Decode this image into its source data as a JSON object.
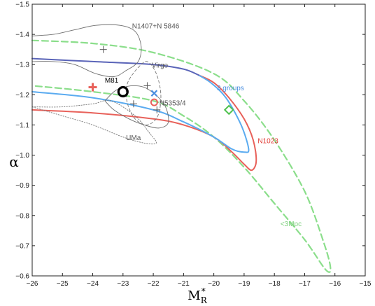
{
  "chart_data": {
    "type": "line",
    "title": "",
    "xlabel_main": "M",
    "xlabel_sub": "R",
    "xlabel_sup": "*",
    "ylabel": "α",
    "xlim": [
      -26,
      -15
    ],
    "ylim": [
      -1.5,
      -0.6
    ],
    "y_inverted": true,
    "grid": false,
    "xticks": [
      -26,
      -25,
      -24,
      -23,
      -22,
      -21,
      -20,
      -19,
      -18,
      -17,
      -16,
      -15
    ],
    "yticks": [
      -1.5,
      -1.4,
      -1.3,
      -1.2,
      -1.1,
      -1.0,
      -0.9,
      -0.8,
      -0.7,
      -0.6
    ],
    "xtick_labels": [
      "−26",
      "−25",
      "−24",
      "−23",
      "−22",
      "−21",
      "−20",
      "−19",
      "−18",
      "−17",
      "−16",
      "−15"
    ],
    "ytick_labels": [
      "−1.5",
      "−1.4",
      "−1.3",
      "−1.2",
      "−1.1",
      "−1.0",
      "−0.9",
      "−0.8",
      "−0.7",
      "−0.6"
    ],
    "series": [
      {
        "name": "<3Mpc",
        "color": "#8bde8b",
        "style": "dashed",
        "points": [
          [
            -26,
            -1.38
          ],
          [
            -24,
            -1.37
          ],
          [
            -22,
            -1.34
          ],
          [
            -20,
            -1.27
          ],
          [
            -19,
            -1.18
          ],
          [
            -18,
            -1.05
          ],
          [
            -17,
            -0.88
          ],
          [
            -16.4,
            -0.72
          ],
          [
            -16.15,
            -0.63
          ],
          [
            -16.3,
            -0.62
          ],
          [
            -17,
            -0.72
          ],
          [
            -18,
            -0.84
          ],
          [
            -19,
            -0.96
          ],
          [
            -20,
            -1.06
          ],
          [
            -21,
            -1.13
          ],
          [
            -22,
            -1.18
          ],
          [
            -24,
            -1.21
          ],
          [
            -26,
            -1.23
          ]
        ]
      },
      {
        "name": "N1023",
        "color": "#e8615a",
        "style": "solid",
        "points": [
          [
            -26,
            -1.15
          ],
          [
            -24,
            -1.14
          ],
          [
            -22,
            -1.12
          ],
          [
            -21,
            -1.1
          ],
          [
            -20,
            -1.06
          ],
          [
            -19.4,
            -1.01
          ],
          [
            -19,
            -0.97
          ],
          [
            -18.75,
            -0.95
          ],
          [
            -18.6,
            -0.98
          ],
          [
            -18.7,
            -1.05
          ],
          [
            -19,
            -1.12
          ],
          [
            -19.5,
            -1.19
          ],
          [
            -20,
            -1.24
          ],
          [
            -20.5,
            -1.265
          ]
        ]
      },
      {
        "name": "3 groups",
        "color": "#5aabf0",
        "style": "solid",
        "points": [
          [
            -26,
            -1.21
          ],
          [
            -24,
            -1.19
          ],
          [
            -22,
            -1.15
          ],
          [
            -21,
            -1.11
          ],
          [
            -20,
            -1.06
          ],
          [
            -19.4,
            -1.02
          ],
          [
            -19,
            -1.01
          ],
          [
            -18.85,
            -1.02
          ],
          [
            -19.1,
            -1.1
          ],
          [
            -19.6,
            -1.19
          ],
          [
            -20.1,
            -1.24
          ],
          [
            -20.5,
            -1.265
          ]
        ]
      },
      {
        "name": "",
        "color": "#5a64b8",
        "style": "solid",
        "points": [
          [
            -26,
            -1.32
          ],
          [
            -24,
            -1.31
          ],
          [
            -22,
            -1.3
          ],
          [
            -21,
            -1.285
          ],
          [
            -20.5,
            -1.265
          ]
        ]
      },
      {
        "name": "N1407+N 5846",
        "color": "#707070",
        "style": "solid-thin",
        "points": [
          [
            -26,
            -1.395
          ],
          [
            -25.3,
            -1.4
          ],
          [
            -24.6,
            -1.415
          ],
          [
            -23.9,
            -1.43
          ],
          [
            -23.1,
            -1.43
          ],
          [
            -22.6,
            -1.41
          ],
          [
            -22.4,
            -1.36
          ],
          [
            -22.5,
            -1.31
          ],
          [
            -22.9,
            -1.28
          ],
          [
            -23.3,
            -1.26
          ],
          [
            -23.9,
            -1.27
          ],
          [
            -24.6,
            -1.3
          ],
          [
            -25.3,
            -1.31
          ],
          [
            -26,
            -1.31
          ]
        ]
      },
      {
        "name": "Virgo",
        "color": "#777777",
        "style": "dashed-thin",
        "points": [
          [
            -22.9,
            -1.22
          ],
          [
            -22.8,
            -1.25
          ],
          [
            -22.5,
            -1.29
          ],
          [
            -22.2,
            -1.31
          ],
          [
            -21.9,
            -1.27
          ],
          [
            -21.75,
            -1.2
          ],
          [
            -21.85,
            -1.13
          ],
          [
            -22.2,
            -1.1
          ],
          [
            -22.6,
            -1.12
          ],
          [
            -22.85,
            -1.17
          ],
          [
            -22.9,
            -1.22
          ]
        ]
      },
      {
        "name": "N5353/4",
        "color": "#707070",
        "style": "solid-thin",
        "points": [
          [
            -23.6,
            -1.18
          ],
          [
            -23.3,
            -1.21
          ],
          [
            -23.1,
            -1.22
          ],
          [
            -22.7,
            -1.23
          ],
          [
            -22.2,
            -1.22
          ],
          [
            -21.65,
            -1.17
          ],
          [
            -21.5,
            -1.11
          ],
          [
            -21.8,
            -1.09
          ],
          [
            -22.3,
            -1.1
          ],
          [
            -22.8,
            -1.12
          ],
          [
            -23.3,
            -1.15
          ],
          [
            -23.6,
            -1.18
          ]
        ]
      },
      {
        "name": "UMa",
        "color": "#777777",
        "style": "dotted-thin",
        "points": [
          [
            -26,
            -1.16
          ],
          [
            -25,
            -1.16
          ],
          [
            -24,
            -1.17
          ],
          [
            -23.4,
            -1.18
          ],
          [
            -22.6,
            -1.13
          ],
          [
            -22.1,
            -1.07
          ],
          [
            -21.9,
            -1.04
          ],
          [
            -22.3,
            -1.04
          ],
          [
            -23,
            -1.06
          ],
          [
            -24,
            -1.1
          ],
          [
            -25,
            -1.13
          ],
          [
            -26,
            -1.16
          ]
        ]
      }
    ],
    "markers": [
      {
        "type": "plus",
        "x": -23.65,
        "y": -1.35,
        "color": "#555555"
      },
      {
        "type": "plus",
        "x": -22.2,
        "y": -1.23,
        "color": "#555555"
      },
      {
        "type": "plus",
        "x": -22.65,
        "y": -1.17,
        "color": "#555555"
      },
      {
        "type": "plus",
        "x": -21.88,
        "y": -1.15,
        "color": "#555555"
      },
      {
        "type": "plus-bold",
        "x": -24.0,
        "y": -1.225,
        "color": "#e8615a"
      },
      {
        "type": "ring-bold",
        "x": -23.0,
        "y": -1.21,
        "color": "#000000"
      },
      {
        "type": "cross",
        "x": -21.97,
        "y": -1.205,
        "color": "#4a8ee0"
      },
      {
        "type": "ring",
        "x": -21.97,
        "y": -1.175,
        "color": "#e8615a"
      },
      {
        "type": "diamond",
        "x": -19.5,
        "y": -1.15,
        "color": "#4fc24f"
      }
    ],
    "annotations": [
      {
        "text": "N1407+N 5846",
        "x": -22.7,
        "y": -1.42,
        "color": "#555555"
      },
      {
        "text": "Virgo",
        "x": -22.05,
        "y": -1.29,
        "color": "#555555"
      },
      {
        "text": "M81",
        "x": -23.6,
        "y": -1.24,
        "color": "#000000",
        "size": 12
      },
      {
        "text": "N5353/4",
        "x": -21.8,
        "y": -1.165,
        "color": "#555555"
      },
      {
        "text": "UMa",
        "x": -22.9,
        "y": -1.05,
        "color": "#555555"
      },
      {
        "text": "3 groups",
        "x": -19.9,
        "y": -1.215,
        "color": "#4a8ee0"
      },
      {
        "text": "N1023",
        "x": -18.55,
        "y": -1.04,
        "color": "#e03a33"
      },
      {
        "text": "<3Mpc",
        "x": -17.8,
        "y": -0.765,
        "color": "#7ccf7c"
      }
    ]
  }
}
